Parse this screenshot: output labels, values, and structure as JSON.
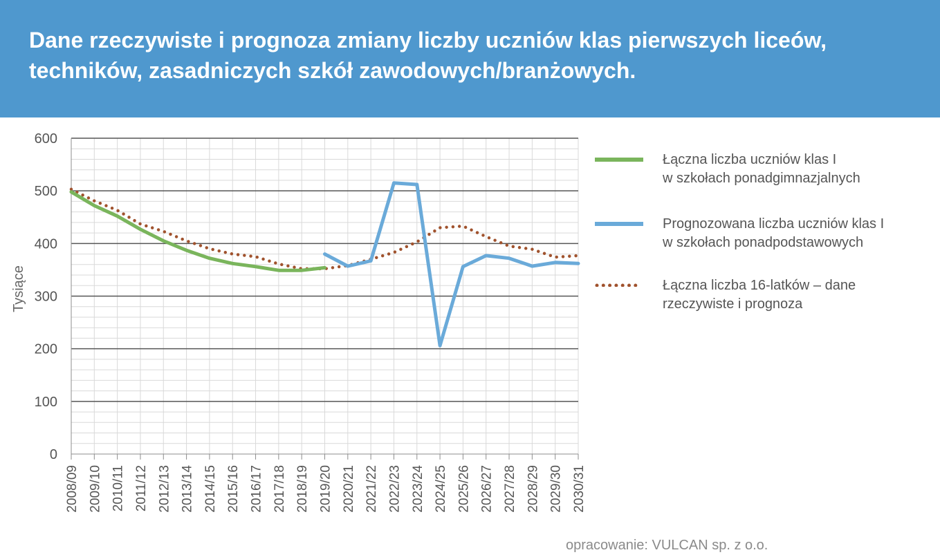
{
  "title": "Dane rzeczywiste i prognoza zmiany liczby uczniów klas pierwszych liceów, techników, zasadniczych szkół zawodowych/branżowych.",
  "credit": "opracowanie: VULCAN sp. z o.o.",
  "colors": {
    "header": "#4f98ce",
    "green": "#7ab55c",
    "blue": "#6aaad9",
    "brown": "#a0522d"
  },
  "chart_data": {
    "type": "line",
    "ylabel": "Tysiące",
    "xlabel": "",
    "ylim": [
      0,
      600
    ],
    "yticks": [
      0,
      100,
      200,
      300,
      400,
      500,
      600
    ],
    "grid": true,
    "legend_position": "right",
    "categories": [
      "2008/09",
      "2009/10",
      "2010/11",
      "2011/12",
      "2012/13",
      "2013/14",
      "2014/15",
      "2015/16",
      "2016/17",
      "2017/18",
      "2018/19",
      "2019/20",
      "2020/21",
      "2021/22",
      "2022/23",
      "2023/24",
      "2024/25",
      "2025/26",
      "2026/27",
      "2027/28",
      "2028/29",
      "2029/30",
      "2030/31"
    ],
    "series": [
      {
        "name": "Łączna liczba uczniów klas I\nw szkołach ponadgimnazjalnych",
        "color": "#7ab55c",
        "style": "solid",
        "values": [
          498,
          472,
          452,
          427,
          405,
          387,
          372,
          362,
          356,
          349,
          349,
          354,
          null,
          null,
          null,
          null,
          null,
          null,
          null,
          null,
          null,
          null,
          null
        ]
      },
      {
        "name": "Prognozowana liczba uczniów klas I\nw szkołach ponadpodstawowych",
        "color": "#6aaad9",
        "style": "solid",
        "values": [
          null,
          null,
          null,
          null,
          null,
          null,
          null,
          null,
          null,
          null,
          null,
          380,
          357,
          367,
          515,
          512,
          206,
          356,
          377,
          372,
          357,
          364,
          362
        ]
      },
      {
        "name": "Łączna liczba 16-latków – dane\nrzeczywiste i prognoza",
        "color": "#a0522d",
        "style": "dotted",
        "values": [
          503,
          481,
          463,
          437,
          423,
          405,
          390,
          380,
          375,
          361,
          352,
          352,
          358,
          370,
          383,
          403,
          430,
          433,
          413,
          395,
          389,
          374,
          377
        ]
      }
    ]
  }
}
